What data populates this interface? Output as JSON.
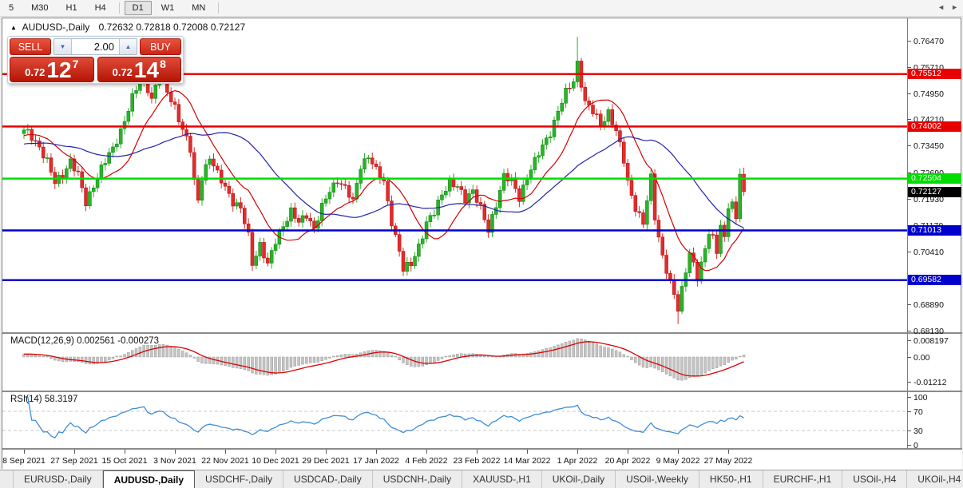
{
  "toolbar": {
    "timeframes": [
      {
        "label": "5",
        "active": false
      },
      {
        "label": "M30",
        "active": false
      },
      {
        "label": "H1",
        "active": false
      },
      {
        "label": "H4",
        "active": false
      },
      {
        "separator": true
      },
      {
        "label": "D1",
        "active": true
      },
      {
        "label": "W1",
        "active": false
      },
      {
        "label": "MN",
        "active": false
      },
      {
        "separator": true
      }
    ]
  },
  "chart": {
    "symbol_label": "AUDUSD-,Daily",
    "ohlc": "0.72632 0.72818 0.72008 0.72127",
    "open": "0.72632",
    "high": "0.72818",
    "low": "0.72008",
    "close": "0.72127",
    "collapse_icon": "▲"
  },
  "trade": {
    "sell_label": "SELL",
    "buy_label": "BUY",
    "volume": "2.00",
    "sell_price": {
      "prefix": "0.72",
      "big": "12",
      "sup": "7"
    },
    "buy_price": {
      "prefix": "0.72",
      "big": "14",
      "sup": "8"
    }
  },
  "price_axis": {
    "ticks": [
      "0.76470",
      "0.75710",
      "0.74950",
      "0.74210",
      "0.73450",
      "0.72690",
      "0.71930",
      "0.71170",
      "0.70410",
      "0.69650",
      "0.68890",
      "0.68130"
    ],
    "current_price": {
      "label": "0.72127",
      "value": 0.72127,
      "bg": "#000000"
    }
  },
  "levels": [
    {
      "label": "0.75512",
      "value": 0.75512,
      "color": "#e80000"
    },
    {
      "label": "0.74002",
      "value": 0.74002,
      "color": "#e80000"
    },
    {
      "label": "0.72504",
      "value": 0.72504,
      "color": "#00dd00"
    },
    {
      "label": "0.71013",
      "value": 0.71013,
      "color": "#0000cc"
    },
    {
      "label": "0.69582",
      "value": 0.69582,
      "color": "#0000cc"
    }
  ],
  "macd": {
    "name": "MACD(12,26,9)",
    "main_value": "0.002561",
    "signal_value": "-0.000273",
    "axis": [
      {
        "label": "0.008197",
        "value": 0.008197
      },
      {
        "label": "0.00",
        "value": 0
      },
      {
        "label": "-0.01212",
        "value": -0.01212
      }
    ]
  },
  "rsi": {
    "name": "RSI(14)",
    "value": "58.3197",
    "axis": [
      {
        "label": "100",
        "value": 100
      },
      {
        "label": "70",
        "value": 70
      },
      {
        "label": "30",
        "value": 30
      },
      {
        "label": "0",
        "value": 0
      }
    ],
    "dashed_levels": [
      70,
      30
    ]
  },
  "date_axis": [
    "8 Sep 2021",
    "27 Sep 2021",
    "15 Oct 2021",
    "3 Nov 2021",
    "22 Nov 2021",
    "10 Dec 2021",
    "29 Dec 2021",
    "17 Jan 2022",
    "4 Feb 2022",
    "23 Feb 2022",
    "14 Mar 2022",
    "1 Apr 2022",
    "20 Apr 2022",
    "9 May 2022",
    "27 May 2022"
  ],
  "tabs": [
    {
      "label": "EURUSD-,Daily",
      "active": false
    },
    {
      "label": "AUDUSD-,Daily",
      "active": true
    },
    {
      "label": "USDCHF-,Daily",
      "active": false
    },
    {
      "label": "USDCAD-,Daily",
      "active": false
    },
    {
      "label": "USDCNH-,Daily",
      "active": false
    },
    {
      "label": "XAUUSD-,H1",
      "active": false
    },
    {
      "label": "UKOil-,Daily",
      "active": false
    },
    {
      "label": "USOil-,Weekly",
      "active": false
    },
    {
      "label": "HK50-,H1",
      "active": false
    },
    {
      "label": "EURCHF-,H1",
      "active": false
    },
    {
      "label": "USOil-,H4",
      "active": false
    },
    {
      "label": "UKOil-,H4",
      "active": false
    }
  ],
  "tab_scroll": {
    "left": "◄",
    "right": "►"
  },
  "colors": {
    "candle_up": "#28b428",
    "candle_up_border": "#157a15",
    "candle_down": "#e32b2b",
    "candle_down_border": "#a81212",
    "ma_fast": "#d40000",
    "ma_slow": "#2222aa",
    "macd_hist": "#c4c4c4",
    "macd_hist_border": "#9e9e9e",
    "macd_signal": "#dd0000",
    "rsi_line": "#3f8ed8",
    "level_dashed": "#c8c8c8"
  },
  "chart_data": {
    "type": "candlestick",
    "symbol": "AUDUSD",
    "timeframe": "Daily",
    "x_start_label": "8 Sep 2021",
    "x_end_label": "27 May 2022",
    "y_range": [
      0.6813,
      0.7647
    ],
    "last_candle": {
      "open": 0.72632,
      "high": 0.72818,
      "low": 0.72008,
      "close": 0.72127
    },
    "series_keypoints": [
      [
        0,
        0.739
      ],
      [
        2,
        0.7368
      ],
      [
        4,
        0.7345
      ],
      [
        6,
        0.73
      ],
      [
        8,
        0.7235
      ],
      [
        10,
        0.7262
      ],
      [
        12,
        0.7305
      ],
      [
        14,
        0.7258
      ],
      [
        16,
        0.7178
      ],
      [
        18,
        0.7235
      ],
      [
        20,
        0.728
      ],
      [
        23,
        0.7335
      ],
      [
        26,
        0.742
      ],
      [
        28,
        0.748
      ],
      [
        30,
        0.753
      ],
      [
        31,
        0.7546
      ],
      [
        33,
        0.748
      ],
      [
        35,
        0.755
      ],
      [
        37,
        0.75
      ],
      [
        39,
        0.746
      ],
      [
        41,
        0.739
      ],
      [
        43,
        0.733
      ],
      [
        44,
        0.724
      ],
      [
        45,
        0.719
      ],
      [
        46,
        0.726
      ],
      [
        48,
        0.731
      ],
      [
        50,
        0.726
      ],
      [
        52,
        0.723
      ],
      [
        54,
        0.7185
      ],
      [
        56,
        0.716
      ],
      [
        58,
        0.7085
      ],
      [
        59,
        0.701
      ],
      [
        61,
        0.7062
      ],
      [
        63,
        0.6998
      ],
      [
        65,
        0.707
      ],
      [
        67,
        0.712
      ],
      [
        69,
        0.7155
      ],
      [
        71,
        0.712
      ],
      [
        73,
        0.715
      ],
      [
        75,
        0.7108
      ],
      [
        77,
        0.7165
      ],
      [
        79,
        0.7215
      ],
      [
        81,
        0.725
      ],
      [
        83,
        0.7222
      ],
      [
        85,
        0.718
      ],
      [
        87,
        0.729
      ],
      [
        89,
        0.7318
      ],
      [
        91,
        0.727
      ],
      [
        93,
        0.724
      ],
      [
        95,
        0.713
      ],
      [
        97,
        0.704
      ],
      [
        98,
        0.6985
      ],
      [
        100,
        0.7005
      ],
      [
        102,
        0.706
      ],
      [
        104,
        0.712
      ],
      [
        106,
        0.715
      ],
      [
        108,
        0.721
      ],
      [
        110,
        0.7242
      ],
      [
        112,
        0.7222
      ],
      [
        114,
        0.719
      ],
      [
        116,
        0.7222
      ],
      [
        118,
        0.7165
      ],
      [
        120,
        0.7095
      ],
      [
        122,
        0.718
      ],
      [
        124,
        0.7262
      ],
      [
        126,
        0.724
      ],
      [
        128,
        0.7192
      ],
      [
        130,
        0.7262
      ],
      [
        132,
        0.73
      ],
      [
        134,
        0.734
      ],
      [
        136,
        0.7385
      ],
      [
        138,
        0.7448
      ],
      [
        140,
        0.7495
      ],
      [
        142,
        0.753
      ],
      [
        143,
        0.7585
      ],
      [
        145,
        0.7472
      ],
      [
        147,
        0.744
      ],
      [
        149,
        0.7405
      ],
      [
        151,
        0.7445
      ],
      [
        153,
        0.7385
      ],
      [
        155,
        0.73
      ],
      [
        156,
        0.724
      ],
      [
        158,
        0.717
      ],
      [
        160,
        0.712
      ],
      [
        162,
        0.725
      ],
      [
        163,
        0.714
      ],
      [
        165,
        0.703
      ],
      [
        167,
        0.695
      ],
      [
        169,
        0.6872
      ],
      [
        171,
        0.699
      ],
      [
        172,
        0.7045
      ],
      [
        174,
        0.6962
      ],
      [
        176,
        0.704
      ],
      [
        177,
        0.71
      ],
      [
        178,
        0.7085
      ],
      [
        179,
        0.7042
      ],
      [
        180,
        0.7125
      ],
      [
        181,
        0.707
      ],
      [
        182,
        0.7165
      ],
      [
        183,
        0.718
      ],
      [
        184,
        0.7135
      ],
      [
        185,
        0.72632
      ],
      [
        186,
        0.72127
      ]
    ],
    "special_wicks": {
      "143": {
        "high": 0.7658
      },
      "169": {
        "low": 0.6832
      },
      "185": {
        "high": 0.728
      }
    },
    "num_days": 187,
    "indicators": [
      {
        "name": "MACD(12,26,9)",
        "values_shown": [
          0.002561,
          -0.000273
        ],
        "range": [
          -0.01212,
          0.008197
        ]
      },
      {
        "name": "RSI(14)",
        "value_shown": 58.3197,
        "levels": [
          70,
          30
        ]
      }
    ],
    "horizontal_levels": [
      0.75512,
      0.74002,
      0.72504,
      0.71013,
      0.69582
    ]
  }
}
